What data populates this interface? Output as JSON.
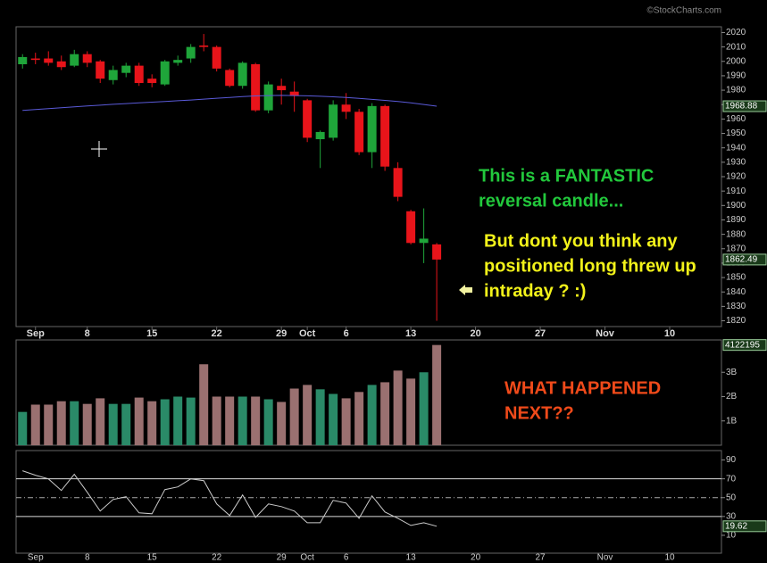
{
  "chart_data": {
    "type": "candlestick",
    "watermark": "©StockCharts.com",
    "xlim": [
      -0.5,
      54
    ],
    "xticks": [
      {
        "value": 1,
        "label": "Sep"
      },
      {
        "value": 5,
        "label": "8"
      },
      {
        "value": 10,
        "label": "15"
      },
      {
        "value": 15,
        "label": "22"
      },
      {
        "value": 20,
        "label": "29"
      },
      {
        "value": 22,
        "label": "Oct"
      },
      {
        "value": 25,
        "label": "6"
      },
      {
        "value": 30,
        "label": "13"
      },
      {
        "value": 35,
        "label": "20"
      },
      {
        "value": 40,
        "label": "27"
      },
      {
        "value": 45,
        "label": "Nov"
      },
      {
        "value": 50,
        "label": "10"
      }
    ],
    "price": {
      "ylim": [
        1816,
        2024
      ],
      "yticks": [
        1820,
        1830,
        1840,
        1850,
        1860,
        1870,
        1880,
        1890,
        1900,
        1910,
        1920,
        1930,
        1940,
        1950,
        1960,
        1970,
        1980,
        1990,
        2000,
        2010,
        2020
      ],
      "up_color": "#1fa53a",
      "down_color": "#e8141a",
      "open": [
        1998,
        2002,
        2002,
        2000,
        1997,
        2005,
        2000,
        1987,
        1992,
        1997,
        1988,
        1984,
        1999,
        2002,
        2011,
        2010,
        1994,
        1983,
        1998,
        1966,
        1983,
        1979,
        1973,
        1946,
        1947,
        1970,
        1965,
        1937,
        1969,
        1926,
        1896,
        1874,
        1873
      ],
      "high": [
        2005,
        2006,
        2007,
        2004,
        2008,
        2007,
        2001,
        1997,
        1999,
        1999,
        1991,
        2001,
        2004,
        2012,
        2019,
        2011,
        1995,
        2000,
        1999,
        1986,
        1988,
        1986,
        1974,
        1952,
        1973,
        1978,
        1967,
        1971,
        1970,
        1930,
        1897,
        1898,
        1874
      ],
      "low": [
        1995,
        1998,
        1997,
        1994,
        1996,
        1996,
        1985,
        1984,
        1989,
        1983,
        1982,
        1983,
        1997,
        1999,
        2007,
        1993,
        1982,
        1981,
        1965,
        1964,
        1970,
        1965,
        1944,
        1926,
        1945,
        1960,
        1935,
        1926,
        1924,
        1903,
        1873,
        1860,
        1820
      ],
      "close": [
        2003,
        2001,
        1999,
        1996,
        2005,
        1999,
        1988,
        1994,
        1997,
        1985,
        1985,
        2000,
        2001,
        2010,
        2010,
        1995,
        1983,
        1999,
        1966,
        1984,
        1980,
        1976,
        1947,
        1951,
        1970,
        1965,
        1937,
        1969,
        1927,
        1906,
        1874,
        1877,
        1862.49
      ],
      "ma": {
        "color": "#5a5ad8",
        "values": [
          1966.0,
          1966.6,
          1967.2,
          1967.8,
          1968.4,
          1969.0,
          1969.6,
          1970.2,
          1970.7,
          1971.2,
          1971.7,
          1972.2,
          1972.7,
          1973.2,
          1973.8,
          1974.4,
          1975.0,
          1975.6,
          1976.0,
          1976.3,
          1976.4,
          1976.3,
          1976.1,
          1975.8,
          1975.4,
          1974.9,
          1974.3,
          1973.6,
          1972.9,
          1972.1,
          1971.2,
          1970.1,
          1968.88
        ]
      }
    },
    "volume": {
      "ylim": [
        0,
        4.33
      ],
      "yticks": [
        {
          "value": 1,
          "label": "1B"
        },
        {
          "value": 2,
          "label": "2B"
        },
        {
          "value": 3,
          "label": "3B"
        }
      ],
      "up_color": "#2a8a68",
      "down_color": "#9a7070",
      "values": [
        1.37,
        1.67,
        1.67,
        1.81,
        1.81,
        1.7,
        1.93,
        1.7,
        1.7,
        1.96,
        1.81,
        1.89,
        2.0,
        1.96,
        3.33,
        2.0,
        2.0,
        2.0,
        2.0,
        1.89,
        1.78,
        2.33,
        2.48,
        2.3,
        2.11,
        1.93,
        2.19,
        2.48,
        2.59,
        3.07,
        2.74,
        3.0,
        4.122195
      ],
      "last_label": "4122195"
    },
    "rsi": {
      "ylim": [
        -9,
        100
      ],
      "yticks": [
        10,
        30,
        50,
        70,
        90
      ],
      "color": "#cccccc",
      "values": [
        78.6,
        73.8,
        70.0,
        57.6,
        74.8,
        55.7,
        35.7,
        48.1,
        51.0,
        33.8,
        32.9,
        58.6,
        61.4,
        70.0,
        68.1,
        43.3,
        31.0,
        52.9,
        29.0,
        43.3,
        40.5,
        35.7,
        23.3,
        23.3,
        47.1,
        44.3,
        28.1,
        51.9,
        34.8,
        28.1,
        20.5,
        23.3,
        19.62
      ]
    },
    "annotations": [
      {
        "color": "#22c83c",
        "lines": [
          "This is a FANTASTIC",
          "reversal candle..."
        ]
      },
      {
        "color": "#f2f21a",
        "lines": [
          "But dont you think any",
          "positioned long threw up",
          "intraday ?  :)"
        ]
      },
      {
        "color": "#f04a1a",
        "lines": [
          "WHAT HAPPENED",
          "NEXT??"
        ]
      }
    ]
  }
}
